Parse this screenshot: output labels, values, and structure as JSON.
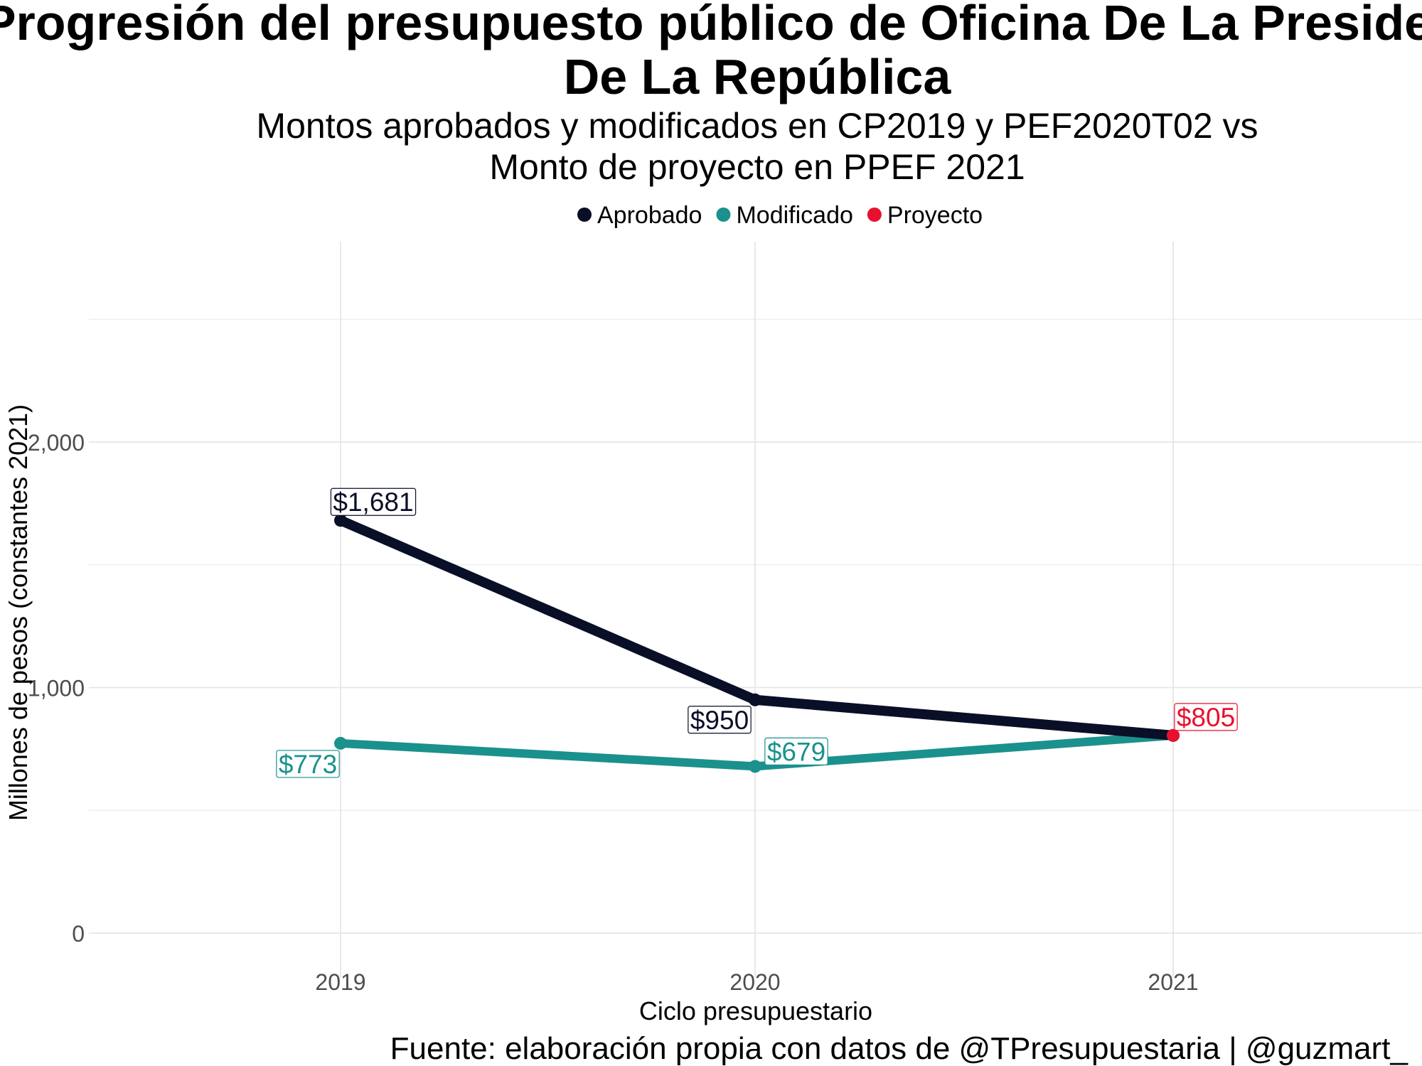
{
  "chart_data": {
    "type": "line",
    "title_lines": [
      "Progresión del presupuesto público de Oficina De La Presidencia",
      "De La República"
    ],
    "subtitle_lines": [
      "Montos aprobados y modificados en CP2019 y PEF2020T02 vs",
      "Monto de proyecto en PPEF 2021"
    ],
    "xlabel": "Ciclo presupuestario",
    "ylabel": "Millones de pesos (constantes 2021)",
    "caption": "Fuente: elaboración propia con datos de @TPresupuestaria | @guzmart_",
    "categories": [
      "2019",
      "2020",
      "2021"
    ],
    "y_ticks": [
      0,
      1000,
      2000
    ],
    "y_tick_labels": [
      "0",
      "1,000",
      "2,000"
    ],
    "ylim": [
      -200,
      2500
    ],
    "grid": true,
    "legend_position": "top",
    "legend": [
      {
        "name": "Aprobado",
        "color": "#0a0f28"
      },
      {
        "name": "Modificado",
        "color": "#1a918d"
      },
      {
        "name": "Proyecto",
        "color": "#e8102e"
      }
    ],
    "series": [
      {
        "name": "Aprobado",
        "color": "#0a0f28",
        "points": [
          {
            "x": "2019",
            "y": 1681,
            "label": "$1,681"
          },
          {
            "x": "2020",
            "y": 950,
            "label": "$950"
          },
          {
            "x": "2021",
            "y": 805
          }
        ]
      },
      {
        "name": "Modificado",
        "color": "#1a918d",
        "points": [
          {
            "x": "2019",
            "y": 773,
            "label": "$773"
          },
          {
            "x": "2020",
            "y": 679,
            "label": "$679"
          },
          {
            "x": "2021",
            "y": 805
          }
        ]
      },
      {
        "name": "Proyecto",
        "color": "#e8102e",
        "points": [
          {
            "x": "2021",
            "y": 805,
            "label": "$805"
          }
        ]
      }
    ]
  }
}
